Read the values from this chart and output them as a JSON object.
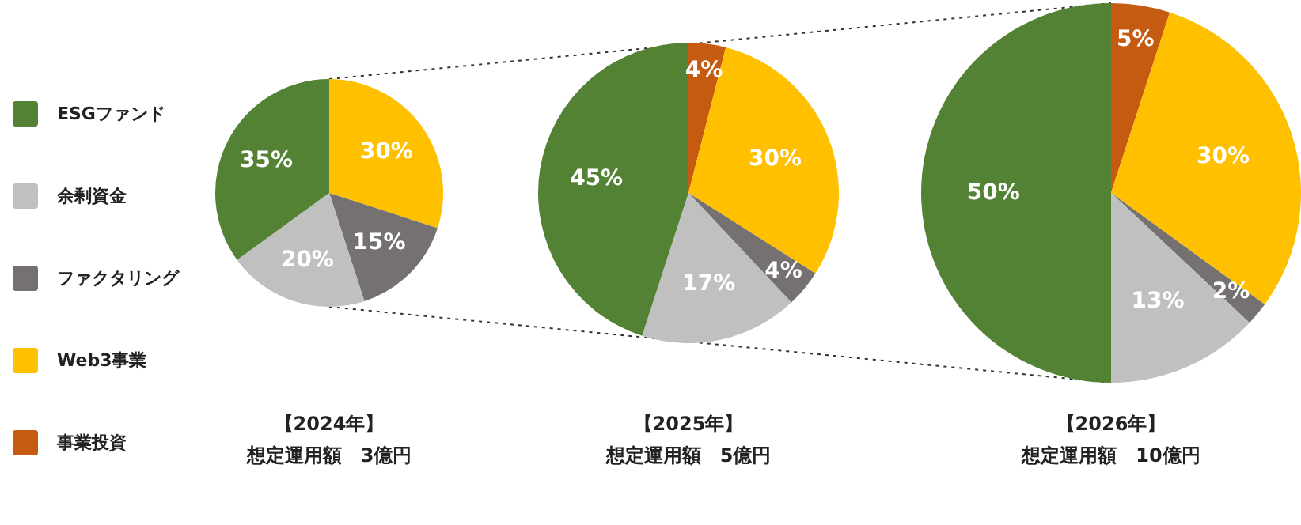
{
  "chart_data": [
    {
      "type": "pie",
      "title": "【2024年】",
      "subtitle": "想定運用額　3億円",
      "legend": "left",
      "categories": [
        "事業投資",
        "Web3事業",
        "ファクタリング",
        "余剰資金",
        "ESGファンド"
      ],
      "values": [
        0,
        30,
        15,
        20,
        35
      ],
      "value_labels": [
        null,
        "30%",
        "15%",
        "20%",
        "35%"
      ],
      "colors": [
        "#c55a11",
        "#ffc000",
        "#767171",
        "#c0c0c0",
        "#548235"
      ]
    },
    {
      "type": "pie",
      "title": "【2025年】",
      "subtitle": "想定運用額　5億円",
      "categories": [
        null,
        null,
        null,
        null,
        null
      ],
      "values": [
        4,
        30,
        4,
        17,
        45
      ],
      "value_labels": [
        "4%",
        "30%",
        "4%",
        "17%",
        "45%"
      ],
      "colors": [
        "#c55a11",
        "#ffc000",
        "#767171",
        "#c0c0c0",
        "#548235"
      ]
    },
    {
      "type": "pie",
      "title": "【2026年】",
      "subtitle": "想定運用額　10億円",
      "categories": [
        null,
        null,
        null,
        null,
        null
      ],
      "values": [
        5,
        30,
        2,
        13,
        50
      ],
      "value_labels": [
        "5%",
        "30%",
        "2%",
        "13%",
        "50%"
      ],
      "colors": [
        "#c55a11",
        "#ffc000",
        "#767171",
        "#c0c0c0",
        "#548235"
      ]
    }
  ]
}
